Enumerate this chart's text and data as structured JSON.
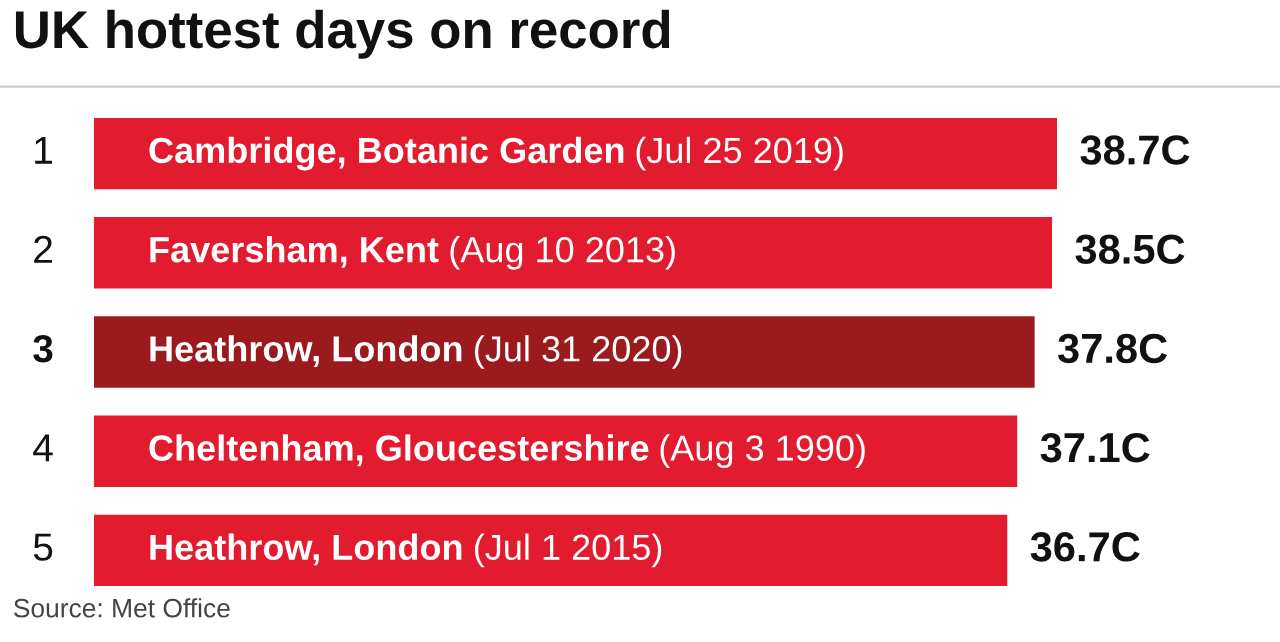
{
  "chart_data": {
    "type": "bar",
    "orientation": "horizontal",
    "title": "UK hottest days on record",
    "categories": [
      "1",
      "2",
      "3",
      "4",
      "5"
    ],
    "values": [
      38.7,
      38.5,
      37.8,
      37.1,
      36.7
    ],
    "value_labels": [
      "38.7C",
      "38.5C",
      "37.8C",
      "37.1C",
      "36.7C"
    ],
    "colors": [
      "#e31b2f",
      "#e31b2f",
      "#9b1a1e",
      "#e31b2f",
      "#e31b2f"
    ],
    "annotations": [
      "Cambridge, Botanic Garden",
      "(Jul 25 2019)",
      "Faversham, Kent",
      "(Aug 10 2013)",
      "Heathrow, London",
      "(Jul 31 2020)",
      "Cheltenham, Gloucestershire",
      "(Aug 3 1990)",
      "Heathrow, London",
      "(Jul 1 2015)",
      "Source: Met Office"
    ]
  }
}
